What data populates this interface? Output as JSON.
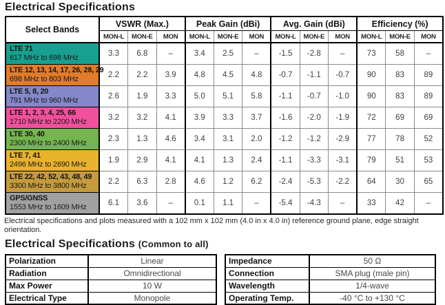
{
  "page": {
    "title": "Electrical Specifications",
    "note": "Electrical specifications and plots measured with a 102 mm x 102 mm (4.0 in x 4.0 in) reference ground plane, edge straight orientation.",
    "common_title": "Electrical Specifications",
    "common_subtitle": "(Common to all)"
  },
  "spec_table": {
    "corner_header": "Select Bands",
    "groups": [
      "VSWR (Max.)",
      "Peak Gain (dBi)",
      "Avg. Gain (dBi)",
      "Efficiency (%)"
    ],
    "subcolumns": [
      "MON-L",
      "MON-E",
      "MON"
    ],
    "rows": [
      {
        "band": "LTE 71",
        "range": "617 MHz to 698 MHz",
        "color": "#17a08f",
        "values": [
          "3.3",
          "6.8",
          "–",
          "3.4",
          "2.5",
          "–",
          "-1.5",
          "-2.8",
          "–",
          "73",
          "58",
          "–"
        ]
      },
      {
        "band": "LTE 12, 13, 14, 17, 26, 28, 29",
        "range": "698 MHz to 803 MHz",
        "color": "#e07c2c",
        "values": [
          "2.2",
          "2.2",
          "3.9",
          "4.8",
          "4.5",
          "4.8",
          "-0.7",
          "-1.1",
          "-0.7",
          "90",
          "83",
          "89"
        ]
      },
      {
        "band": "LTE 5, 8, 20",
        "range": "791 MHz to 960 MHz",
        "color": "#8288c8",
        "values": [
          "2.6",
          "1.9",
          "3.3",
          "5.0",
          "5.1",
          "5.8",
          "-1.1",
          "-0.7",
          "-1.0",
          "90",
          "83",
          "89"
        ]
      },
      {
        "band": "LTE 1, 2, 3, 4, 25, 66",
        "range": "1710 MHz to 2200 MHz",
        "color": "#f0509e",
        "values": [
          "3.2",
          "3.2",
          "4.1",
          "3.9",
          "3.3",
          "3.7",
          "-1.6",
          "-2.0",
          "-1.9",
          "72",
          "69",
          "69"
        ]
      },
      {
        "band": "LTE 30, 40",
        "range": "2300 MHz to 2400 MHz",
        "color": "#74b54f",
        "values": [
          "2.3",
          "1.3",
          "4.6",
          "3.4",
          "3.1",
          "2.0",
          "-1.2",
          "-1.2",
          "-2.9",
          "77",
          "78",
          "52"
        ]
      },
      {
        "band": "LTE 7, 41",
        "range": "2496 MHz to 2690 MHz",
        "color": "#e9b22d",
        "values": [
          "1.9",
          "2.9",
          "4.1",
          "4.1",
          "1.3",
          "2.4",
          "-1.1",
          "-3.3",
          "-3.1",
          "79",
          "51",
          "53"
        ]
      },
      {
        "band": "LTE 22, 42, 52, 43, 48, 49",
        "range": "3300 MHz to 3800 MHz",
        "color": "#c59b3e",
        "values": [
          "2.2",
          "6.3",
          "2.8",
          "4.6",
          "1.2",
          "6.2",
          "-2.4",
          "-5.3",
          "-2.2",
          "64",
          "30",
          "65"
        ]
      },
      {
        "band": "GPS/GNSS",
        "range": "1553 MHz to 1609 MHz",
        "color": "#a1a1a3",
        "values": [
          "6.1",
          "3.6",
          "–",
          "0.1",
          "1.1",
          "–",
          "-5.4",
          "-4.3",
          "–",
          "33",
          "42",
          "–"
        ]
      }
    ]
  },
  "common_specs": {
    "left": [
      {
        "label": "Polarization",
        "value": "Linear"
      },
      {
        "label": "Radiation",
        "value": "Omnidirectional"
      },
      {
        "label": "Max Power",
        "value": "10 W"
      },
      {
        "label": "Electrical Type",
        "value": "Monopole"
      }
    ],
    "right": [
      {
        "label": "Impedance",
        "value": "50 Ω"
      },
      {
        "label": "Connection",
        "value": "SMA plug (male pin)"
      },
      {
        "label": "Wavelength",
        "value": "1/4-wave"
      },
      {
        "label": "Operating Temp.",
        "value": "-40 °C to +130 °C"
      }
    ]
  }
}
